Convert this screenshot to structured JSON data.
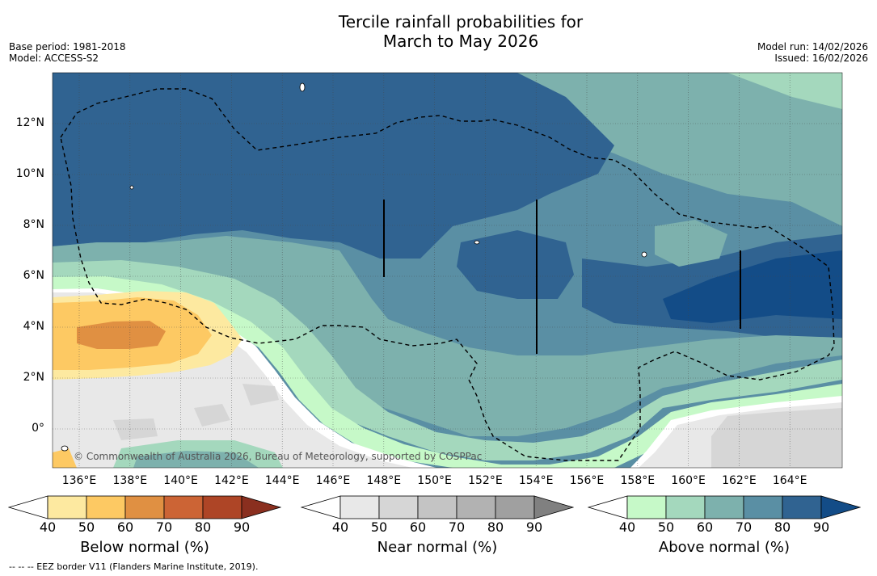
{
  "title": {
    "line1": "Tercile rainfall probabilities for",
    "line2": "March to May 2026"
  },
  "meta_left": {
    "base_period": "Base period: 1981-2018",
    "model": "Model: ACCESS-S2"
  },
  "meta_right": {
    "model_run": "Model run: 14/02/2026",
    "issued": "Issued: 16/02/2026"
  },
  "map": {
    "lon_labels": [
      "136°E",
      "138°E",
      "140°E",
      "142°E",
      "144°E",
      "146°E",
      "148°E",
      "150°E",
      "152°E",
      "154°E",
      "156°E",
      "158°E",
      "160°E",
      "162°E",
      "164°E"
    ],
    "lat_labels": [
      "12°N",
      "10°N",
      "8°N",
      "6°N",
      "4°N",
      "2°N",
      "0°"
    ],
    "copyright": "© Commonwealth of Australia 2026, Bureau of Meteorology, supported by COSPPac"
  },
  "colorbars": [
    {
      "name": "below-normal",
      "title": "Below normal (%)",
      "ticks": [
        "40",
        "50",
        "60",
        "70",
        "80",
        "90"
      ],
      "colors": [
        "#ffffff",
        "#fde9a0",
        "#fdc963",
        "#e09042",
        "#cc6435",
        "#ae4526",
        "#8a2f1f"
      ]
    },
    {
      "name": "near-normal",
      "title": "Near normal (%)",
      "ticks": [
        "40",
        "50",
        "60",
        "70",
        "80",
        "90"
      ],
      "colors": [
        "#ffffff",
        "#e8e8e8",
        "#d6d6d6",
        "#c4c4c4",
        "#b2b2b2",
        "#a0a0a0",
        "#808080"
      ]
    },
    {
      "name": "above-normal",
      "title": "Above normal (%)",
      "ticks": [
        "40",
        "50",
        "60",
        "70",
        "80",
        "90"
      ],
      "colors": [
        "#ffffff",
        "#c6f9c8",
        "#a4d8bd",
        "#7db1ad",
        "#5a8fa4",
        "#306391",
        "#134c87"
      ]
    }
  ],
  "footnote": "-- -- -- EEZ border V11 (Flanders Marine Institute, 2019)."
}
